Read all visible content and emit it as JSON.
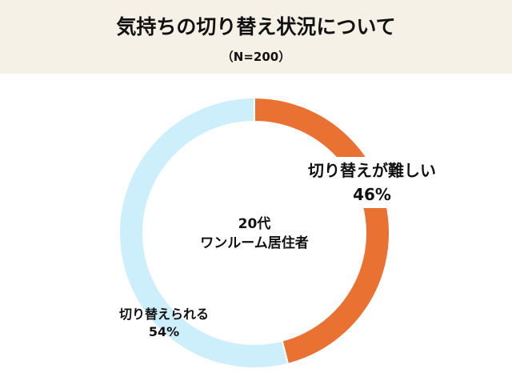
{
  "title": "気持ちの切り替え状況について",
  "subtitle": "（N=200）",
  "chart_data": {
    "type": "pie",
    "donut": true,
    "center_label": [
      "20代",
      "ワンルーム居住者"
    ],
    "categories": [
      "切り替えが難しい",
      "切り替えられる"
    ],
    "values": [
      46,
      54
    ],
    "value_labels": [
      "46%",
      "54%"
    ],
    "colors": [
      "#e97132",
      "#cdeefb"
    ],
    "start": "top",
    "direction": "clockwise"
  }
}
